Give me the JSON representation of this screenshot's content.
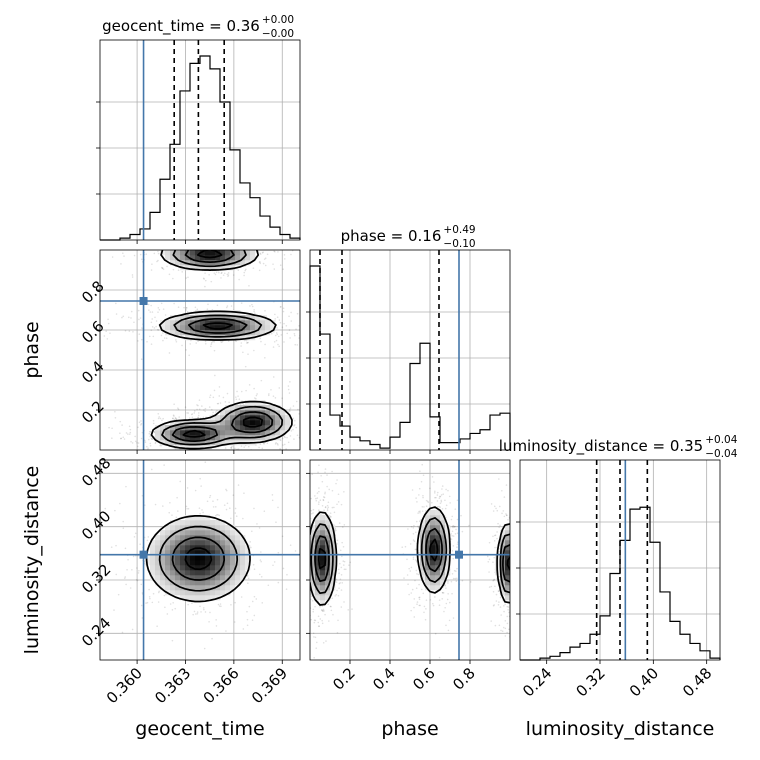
{
  "chart_data": {
    "type": "corner",
    "truth_color": "#4477aa",
    "contour_levels_sigma": [
      0.5,
      1.0,
      1.5,
      2.0
    ],
    "parameters": [
      {
        "name": "geocent_time",
        "axis_label": "geocent_time",
        "range": [
          0.3577,
          0.3701
        ],
        "ticks": [
          0.36,
          0.363,
          0.366,
          0.369
        ],
        "tick_labels": [
          "0.360",
          "0.363",
          "0.366",
          "0.369"
        ],
        "truth": 0.3604,
        "quantiles": [
          0.3623,
          0.3638,
          0.3654
        ],
        "median": 0.3638,
        "title": {
          "text": "geocent_time = 0.36",
          "up": "+0.00",
          "down": "−0.00"
        },
        "histogram": [
          0,
          0,
          0.01,
          0.03,
          0.06,
          0.15,
          0.33,
          0.52,
          0.81,
          0.96,
          1.0,
          0.93,
          0.75,
          0.49,
          0.31,
          0.23,
          0.13,
          0.07,
          0.03,
          0.01
        ]
      },
      {
        "name": "phase",
        "axis_label": "phase",
        "range": [
          0.0,
          1.0
        ],
        "ticks": [
          0.2,
          0.4,
          0.6,
          0.8
        ],
        "tick_labels": [
          "0.2",
          "0.4",
          "0.6",
          "0.8"
        ],
        "truth": 0.745,
        "quantiles": [
          0.05,
          0.16,
          0.645
        ],
        "median": 0.16,
        "title": {
          "text": "phase = 0.16",
          "up": "+0.49",
          "down": "−0.10"
        },
        "histogram": [
          1.0,
          0.63,
          0.19,
          0.13,
          0.07,
          0.05,
          0.03,
          0.01,
          0.07,
          0.15,
          0.47,
          0.58,
          0.18,
          0.04,
          0.04,
          0.06,
          0.09,
          0.11,
          0.19,
          0.2
        ]
      },
      {
        "name": "luminosity_distance",
        "axis_label": "luminosity_distance",
        "range": [
          0.2,
          0.5
        ],
        "ticks": [
          0.24,
          0.32,
          0.4,
          0.48
        ],
        "tick_labels": [
          "0.24",
          "0.32",
          "0.40",
          "0.48"
        ],
        "truth": 0.358,
        "quantiles": [
          0.315,
          0.35,
          0.391
        ],
        "median": 0.35,
        "title": {
          "text": "luminosity_distance = 0.35",
          "up": "+0.04",
          "down": "−0.04"
        },
        "histogram": [
          0,
          0,
          0.01,
          0.02,
          0.04,
          0.07,
          0.09,
          0.14,
          0.24,
          0.47,
          0.65,
          0.82,
          0.83,
          0.64,
          0.37,
          0.21,
          0.14,
          0.09,
          0.05,
          0.01
        ]
      }
    ],
    "pairs": [
      {
        "x": "geocent_time",
        "y": "phase",
        "modes": [
          {
            "x": 0.3635,
            "y": 0.08,
            "sx": 0.0013,
            "sy": 0.035
          },
          {
            "x": 0.3672,
            "y": 0.14,
            "sx": 0.0012,
            "sy": 0.05
          },
          {
            "x": 0.365,
            "y": 0.62,
            "sx": 0.0018,
            "sy": 0.035
          },
          {
            "x": 0.3645,
            "y": 0.98,
            "sx": 0.0015,
            "sy": 0.04
          }
        ]
      },
      {
        "x": "geocent_time",
        "y": "luminosity_distance",
        "modes": [
          {
            "x": 0.3638,
            "y": 0.352,
            "sx": 0.0016,
            "sy": 0.032
          }
        ]
      },
      {
        "x": "phase",
        "y": "luminosity_distance",
        "modes": [
          {
            "x": 0.06,
            "y": 0.352,
            "sx": 0.035,
            "sy": 0.035
          },
          {
            "x": 0.62,
            "y": 0.365,
            "sx": 0.04,
            "sy": 0.032
          },
          {
            "x": 0.99,
            "y": 0.345,
            "sx": 0.025,
            "sy": 0.03
          }
        ]
      }
    ]
  }
}
